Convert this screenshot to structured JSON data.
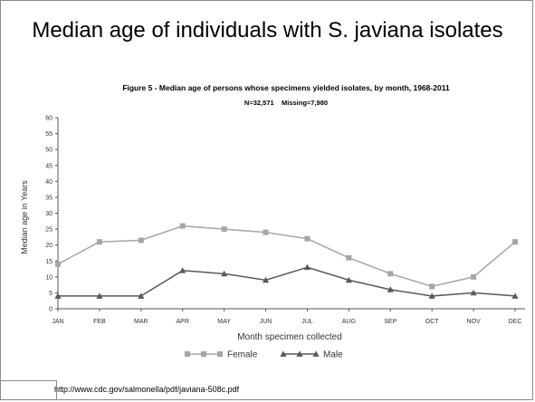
{
  "slide": {
    "title": "Median age of individuals with S. javiana isolates",
    "source": "http://www.cdc.gov/salmonella/pdf/javiana-508c.pdf"
  },
  "chart_data": {
    "type": "line",
    "title": "Figure 5 - Median age of persons whose specimens yielded isolates, by month, 1968-2011",
    "subtitle": "N=32,571    Missing=7,980",
    "xlabel": "Month specimen collected",
    "ylabel": "Median age in Years",
    "categories": [
      "JAN",
      "FEB",
      "MAR",
      "APR",
      "MAY",
      "JUN",
      "JUL",
      "AUG",
      "SEP",
      "OCT",
      "NOV",
      "DEC"
    ],
    "ylim": [
      0,
      60
    ],
    "yticks": [
      0,
      5,
      10,
      15,
      20,
      25,
      30,
      35,
      40,
      45,
      50,
      55,
      60
    ],
    "grid": false,
    "legend_position": "bottom",
    "series": [
      {
        "name": "Female",
        "marker": "square",
        "color": "#a6a6a6",
        "values": [
          14,
          21,
          21.5,
          26,
          25,
          24,
          22,
          16,
          11,
          7,
          10,
          21
        ]
      },
      {
        "name": "Male",
        "marker": "triangle",
        "color": "#595959",
        "values": [
          4,
          4,
          4,
          12,
          11,
          9,
          13,
          9,
          6,
          4,
          5,
          4
        ]
      }
    ]
  }
}
